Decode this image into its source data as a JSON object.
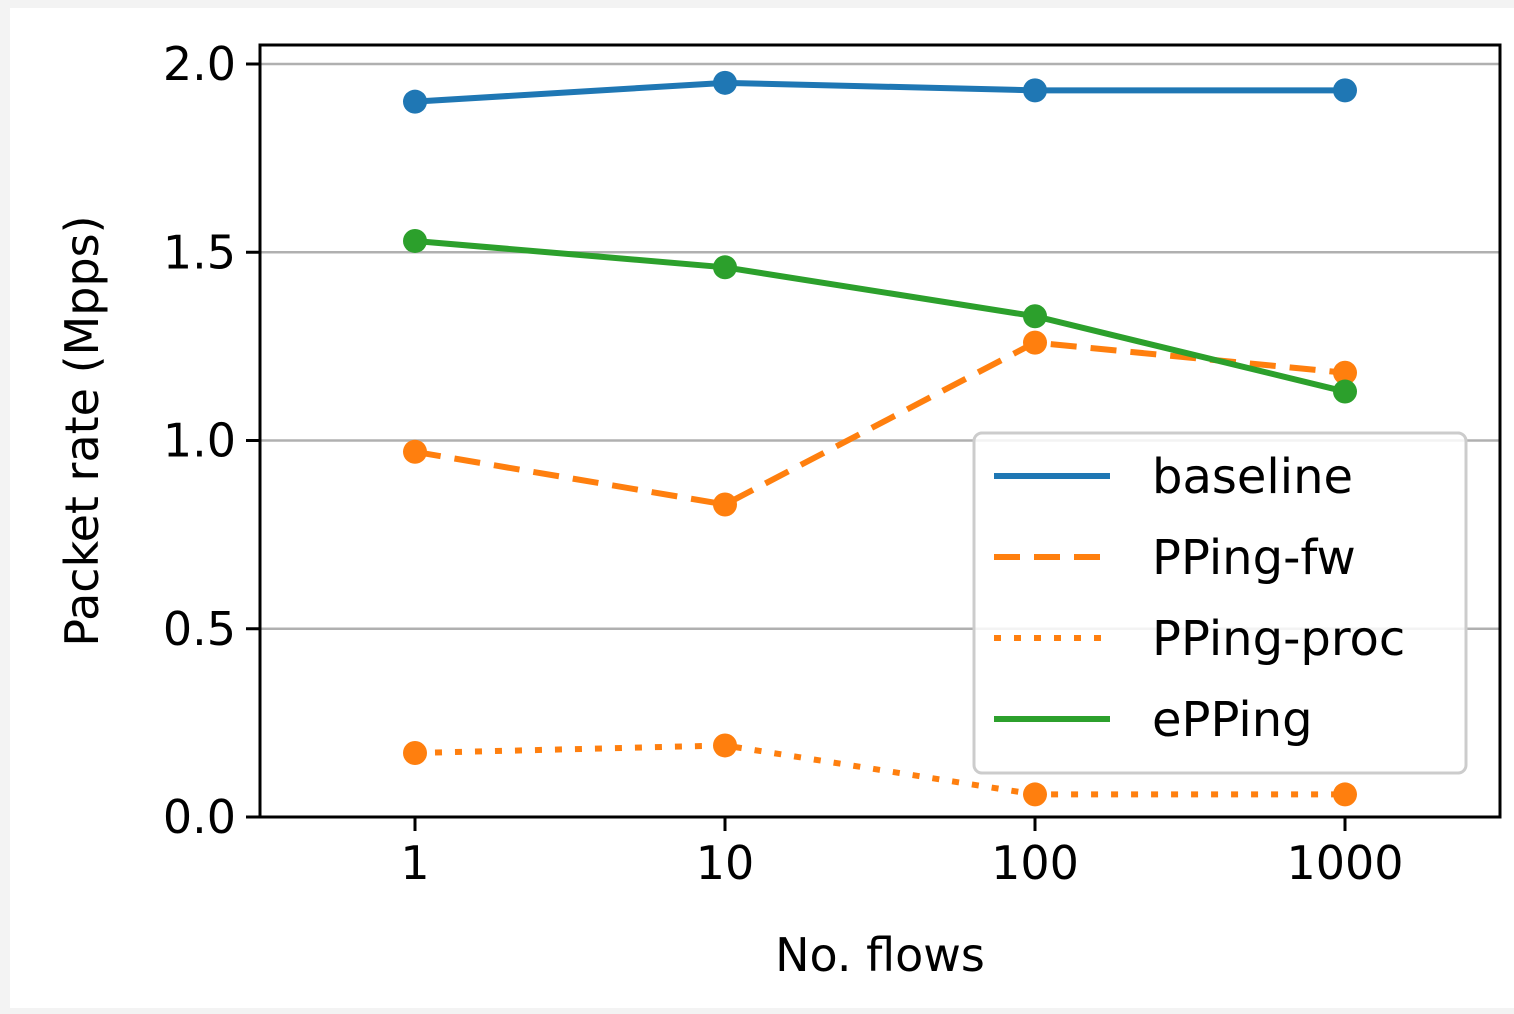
{
  "chart_data": {
    "type": "line",
    "title": "",
    "xlabel": "No. flows",
    "ylabel": "Packet rate (Mpps)",
    "x": [
      "1",
      "10",
      "100",
      "1000"
    ],
    "xscale": "log",
    "ylim": [
      0.0,
      2.0
    ],
    "yticks": [
      "0.0",
      "0.5",
      "1.0",
      "1.5",
      "2.0"
    ],
    "grid": "horizontal",
    "legend_position": "center-right",
    "series": [
      {
        "name": "baseline",
        "values": [
          1.9,
          1.95,
          1.93,
          1.93
        ],
        "color": "#1f77b4",
        "style": "solid"
      },
      {
        "name": "PPing-fw",
        "values": [
          0.97,
          0.83,
          1.26,
          1.18
        ],
        "color": "#ff7f0e",
        "style": "dashed"
      },
      {
        "name": "PPing-proc",
        "values": [
          0.17,
          0.19,
          0.06,
          0.06
        ],
        "color": "#ff7f0e",
        "style": "dotted"
      },
      {
        "name": "ePPing",
        "values": [
          1.53,
          1.46,
          1.33,
          1.13
        ],
        "color": "#2ca02c",
        "style": "solid"
      }
    ]
  }
}
